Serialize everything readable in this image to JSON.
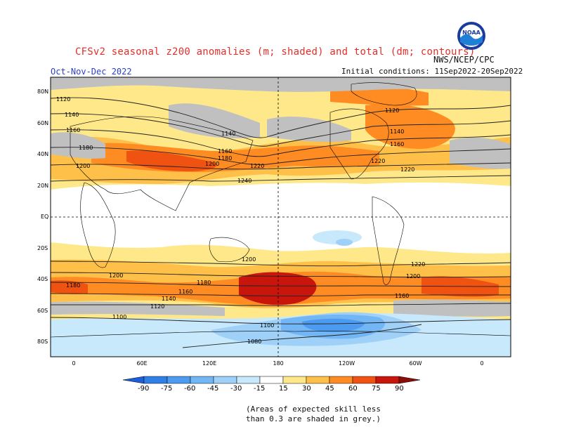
{
  "title": "CFSv2 seasonal z200 anomalies (m; shaded) and total (dm; contours)",
  "period": "Oct-Nov-Dec 2022",
  "initial_conditions": "Initial conditions: 11Sep2022-20Sep2022",
  "agency": "NWS/NCEP/CPC",
  "logo_text": "NOAA",
  "skill_note_line1": "(Areas of expected skill less",
  "skill_note_line2": "than 0.3 are shaded in grey.)",
  "lat_labels": [
    "80N",
    "60N",
    "40N",
    "20N",
    "EQ",
    "20S",
    "40S",
    "60S",
    "80S"
  ],
  "lon_labels": [
    "0",
    "60E",
    "120E",
    "180",
    "120W",
    "60W",
    "0"
  ],
  "colorbar": {
    "levels": [
      "-90",
      "-75",
      "-60",
      "-45",
      "-30",
      "-15",
      "15",
      "30",
      "45",
      "60",
      "75",
      "90"
    ],
    "colors": [
      "#1e5fd8",
      "#2f7fe6",
      "#4d9bf0",
      "#73b6f5",
      "#9fd0f8",
      "#c8e8fb",
      "#ffffff",
      "#ffe88a",
      "#ffc04a",
      "#ff8c22",
      "#f05212",
      "#c8160c",
      "#8e0c08"
    ]
  },
  "contour_labels": [
    "1120",
    "1140",
    "1160",
    "1180",
    "1200",
    "1220",
    "1240",
    "1100",
    "1080",
    "1160",
    "1180",
    "1200",
    "1220",
    "1220",
    "1200",
    "1180",
    "1160",
    "1140",
    "1120",
    "1100",
    "1140",
    "1160",
    "1180",
    "1200",
    "1120",
    "1140",
    "1160",
    "1200",
    "1220"
  ]
}
